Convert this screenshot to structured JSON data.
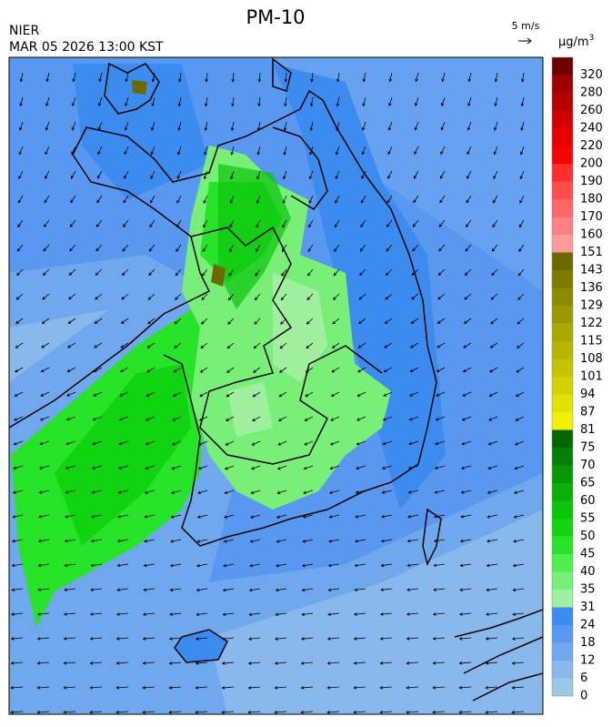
{
  "header": {
    "title": "PM-10",
    "agency": "NIER",
    "timestamp": "MAR 05 2026 13:00 KST",
    "wind_scale": "5 m/s"
  },
  "colorbar": {
    "unit": {
      "base": "μg/m",
      "exponent": "3"
    },
    "levels": [
      0,
      6,
      12,
      18,
      24,
      31,
      35,
      40,
      45,
      50,
      55,
      60,
      65,
      70,
      75,
      81,
      87,
      94,
      101,
      108,
      115,
      122,
      129,
      136,
      143,
      151,
      160,
      170,
      180,
      190,
      200,
      220,
      240,
      260,
      280,
      320
    ],
    "colors": [
      "#9cc8e8",
      "#88b8ec",
      "#70a8ee",
      "#5898f0",
      "#3c8cf0",
      "#a0f0a0",
      "#78f078",
      "#50f050",
      "#28e428",
      "#10d410",
      "#0cc40c",
      "#08b008",
      "#069806",
      "#048004",
      "#026802",
      "#f0f000",
      "#e2e200",
      "#d2d200",
      "#c4c400",
      "#b6b600",
      "#a8a800",
      "#9a9a00",
      "#8c8c00",
      "#7c7c00",
      "#6a6a00",
      "#ff9a9a",
      "#ff8080",
      "#ff6666",
      "#ff4c4c",
      "#ff2e2e",
      "#ff0000",
      "#e80000",
      "#d00000",
      "#b80000",
      "#a00000",
      "#6e0000"
    ]
  }
}
